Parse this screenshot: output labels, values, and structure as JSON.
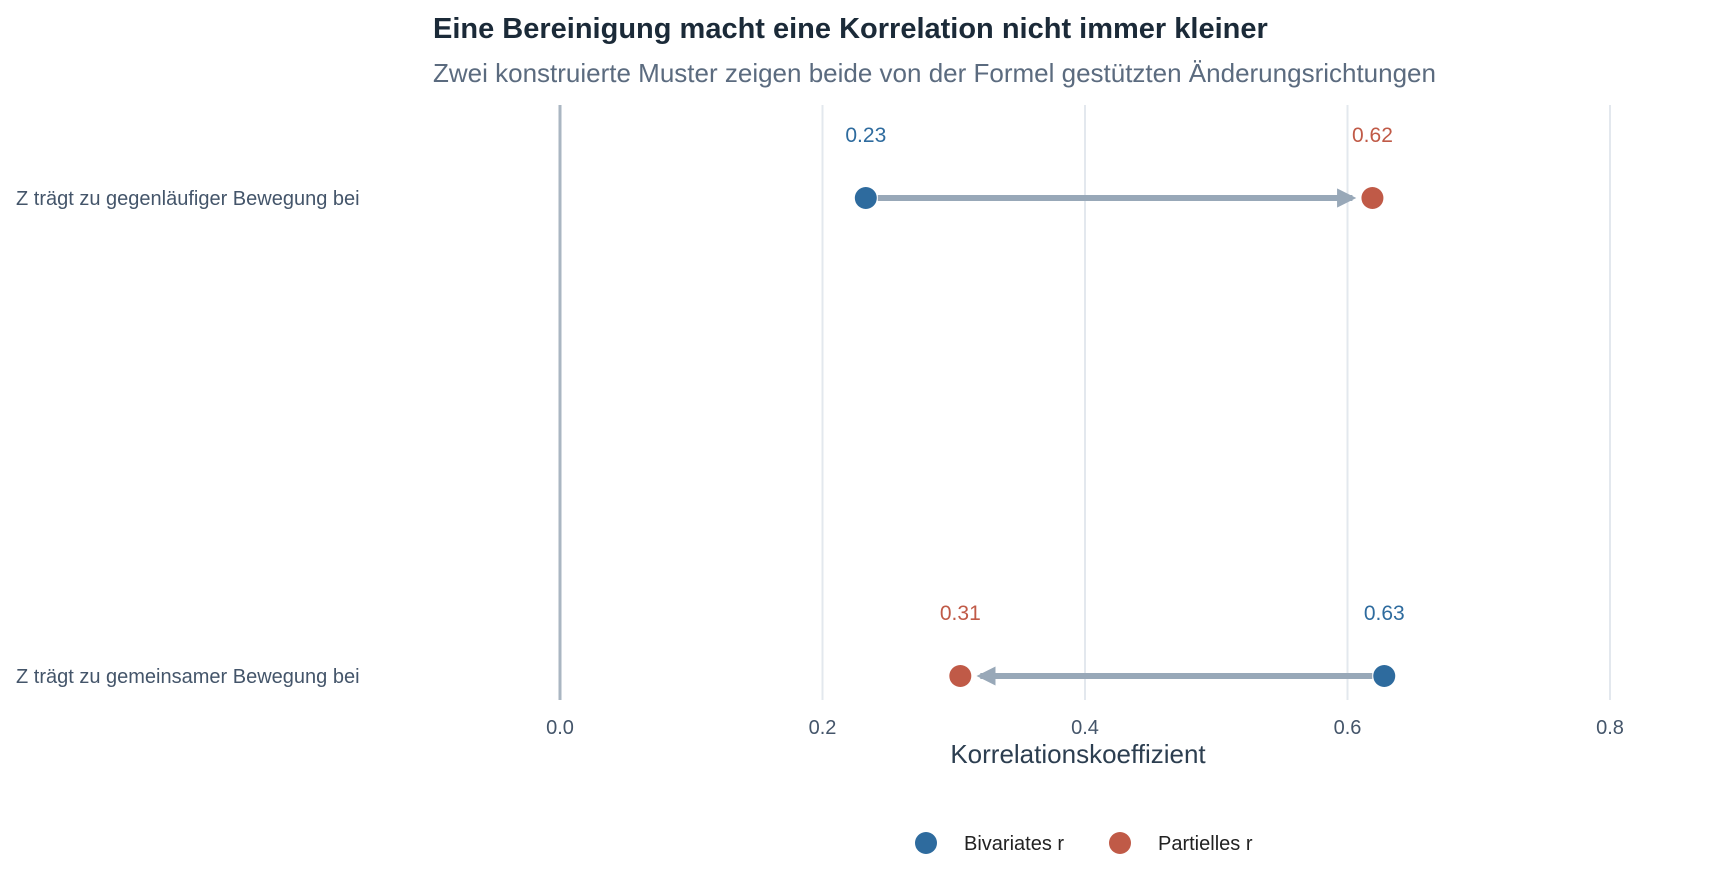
{
  "colors": {
    "bivariate": "#2e6b9e",
    "partial": "#c05a47",
    "arrow": "#98a8b8",
    "grid": "#e3e8ee",
    "zero_line": "#aab6c2"
  },
  "chart_data": {
    "type": "dumbbell",
    "title": "Eine Bereinigung macht eine Korrelation nicht immer kleiner",
    "subtitle": "Zwei konstruierte Muster zeigen beide von der Formel gestützten Änderungsrichtungen",
    "xlabel": "Korrelationskoeffizient",
    "ylabel": "",
    "xlim": [
      0,
      0.8
    ],
    "x_ticks": [
      0.0,
      0.2,
      0.4,
      0.6,
      0.8
    ],
    "x_tick_labels": [
      "0.0",
      "0.2",
      "0.4",
      "0.6",
      "0.8"
    ],
    "grid": true,
    "legend_position": "bottom",
    "categories": [
      "Z trägt zu gegenläufiger Bewegung bei",
      "Z trägt zu gemeinsamer Bewegung bei"
    ],
    "series": [
      {
        "name": "Bivariates r",
        "values": [
          0.233,
          0.628
        ]
      },
      {
        "name": "Partielles r",
        "values": [
          0.619,
          0.305
        ]
      }
    ],
    "data_labels": [
      {
        "bivariate": "0.23",
        "partial": "0.62"
      },
      {
        "bivariate": "0.63",
        "partial": "0.31"
      }
    ]
  }
}
